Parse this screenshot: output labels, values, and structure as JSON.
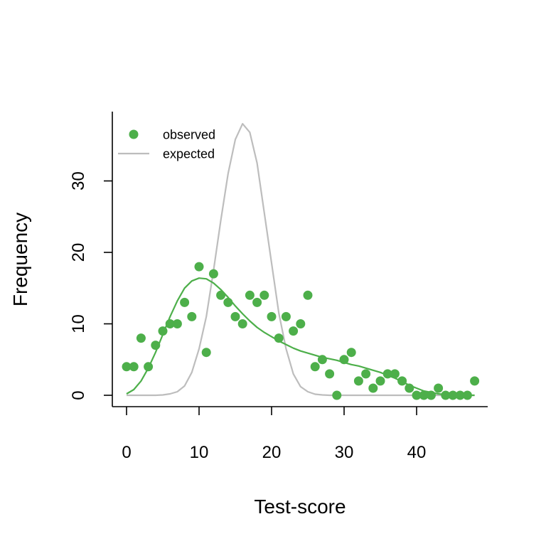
{
  "chart_data": {
    "type": "scatter",
    "xlabel": "Test-score",
    "ylabel": "Frequency",
    "xlim": [
      0,
      48
    ],
    "ylim": [
      0,
      38
    ],
    "x_ticks": [
      0,
      10,
      20,
      30,
      40
    ],
    "y_ticks": [
      0,
      10,
      20,
      30
    ],
    "legend": {
      "placement": "top-left",
      "entries": [
        {
          "label": "observed",
          "kind": "point",
          "color": "#4daf4a"
        },
        {
          "label": "expected",
          "kind": "line",
          "color": "#bdbdbd"
        }
      ]
    },
    "series": [
      {
        "name": "observed",
        "kind": "points",
        "color": "#4daf4a",
        "x": [
          0,
          1,
          2,
          3,
          4,
          5,
          6,
          7,
          8,
          9,
          10,
          11,
          12,
          13,
          14,
          15,
          16,
          17,
          18,
          19,
          20,
          21,
          22,
          23,
          24,
          25,
          26,
          27,
          28,
          29,
          30,
          31,
          32,
          33,
          34,
          35,
          36,
          37,
          38,
          39,
          40,
          41,
          42,
          43,
          44,
          45,
          46,
          47,
          48
        ],
        "y": [
          4,
          4,
          8,
          4,
          7,
          9,
          10,
          10,
          13,
          11,
          18,
          6,
          17,
          14,
          13,
          11,
          10,
          14,
          13,
          14,
          11,
          8,
          11,
          9,
          10,
          14,
          4,
          5,
          3,
          0,
          5,
          6,
          2,
          3,
          1,
          2,
          3,
          3,
          2,
          1,
          0,
          0,
          0,
          1,
          0,
          0,
          0,
          0,
          2
        ]
      },
      {
        "name": "observed-fit",
        "kind": "line",
        "color": "#4daf4a",
        "x": [
          0,
          1,
          2,
          3,
          4,
          5,
          6,
          7,
          8,
          9,
          10,
          11,
          12,
          13,
          14,
          15,
          16,
          17,
          18,
          19,
          20,
          21,
          22,
          23,
          24,
          25,
          26,
          27,
          28,
          29,
          30,
          31,
          32,
          33,
          34,
          35,
          36,
          37,
          38,
          39,
          40,
          41,
          42,
          43,
          44,
          45,
          46,
          47,
          48
        ],
        "y": [
          0.2,
          0.8,
          2.0,
          3.8,
          6.0,
          8.5,
          11.0,
          13.2,
          15.0,
          16.0,
          16.4,
          16.3,
          15.7,
          14.8,
          13.7,
          12.5,
          11.4,
          10.4,
          9.5,
          8.8,
          8.2,
          7.6,
          7.1,
          6.6,
          6.2,
          5.9,
          5.6,
          5.3,
          5.1,
          4.9,
          4.6,
          4.3,
          4.1,
          3.8,
          3.5,
          3.2,
          2.8,
          2.4,
          1.9,
          1.4,
          1.0,
          0.6,
          0.4,
          0.2,
          0.1,
          0.05,
          0.02,
          0.0,
          0.0
        ]
      },
      {
        "name": "expected",
        "kind": "line",
        "color": "#bdbdbd",
        "x": [
          0,
          1,
          2,
          3,
          4,
          5,
          6,
          7,
          8,
          9,
          10,
          11,
          12,
          13,
          14,
          15,
          16,
          17,
          18,
          19,
          20,
          21,
          22,
          23,
          24,
          25,
          26,
          27,
          28,
          29,
          30,
          31,
          32,
          33,
          34,
          35,
          36,
          37,
          38,
          39,
          40,
          41,
          42,
          43,
          44,
          45,
          46,
          47,
          48
        ],
        "y": [
          0,
          0,
          0,
          0,
          0,
          0.05,
          0.2,
          0.5,
          1.3,
          3.2,
          6.5,
          11.0,
          17.5,
          24.5,
          31.0,
          35.8,
          38.0,
          36.8,
          32.5,
          25.5,
          18.5,
          11.5,
          6.5,
          3.0,
          1.2,
          0.5,
          0.15,
          0.05,
          0,
          0,
          0,
          0,
          0,
          0,
          0,
          0,
          0,
          0,
          0,
          0,
          0,
          0,
          0,
          0,
          0,
          0,
          0,
          0,
          0
        ]
      }
    ]
  }
}
